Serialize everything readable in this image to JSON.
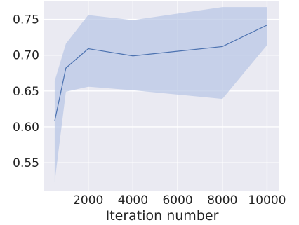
{
  "chart_data": {
    "type": "line",
    "xlabel": "Iteration number",
    "ylabel": "",
    "title": "",
    "xlim": [
      0,
      10550
    ],
    "ylim": [
      0.51,
      0.775
    ],
    "xticks": [
      2000,
      4000,
      6000,
      8000,
      10000
    ],
    "xtick_labels": [
      "2000",
      "4000",
      "6000",
      "8000",
      "10000"
    ],
    "yticks": [
      0.55,
      0.6,
      0.65,
      0.7,
      0.75
    ],
    "ytick_labels": [
      "0.55",
      "0.60",
      "0.65",
      "0.70",
      "0.75"
    ],
    "grid": true,
    "series": [
      {
        "x": [
          500,
          1000,
          2000,
          4000,
          8000,
          10000
        ],
        "y": [
          0.608,
          0.682,
          0.709,
          0.699,
          0.712,
          0.742
        ],
        "lower": [
          0.523,
          0.649,
          0.656,
          0.651,
          0.639,
          0.714
        ],
        "upper": [
          0.664,
          0.716,
          0.756,
          0.749,
          0.767,
          0.767
        ]
      }
    ],
    "colors": {
      "background": "#eaeaf2",
      "grid": "#ffffff",
      "line": "#4c72b0",
      "band": "#b8c6e4"
    }
  }
}
